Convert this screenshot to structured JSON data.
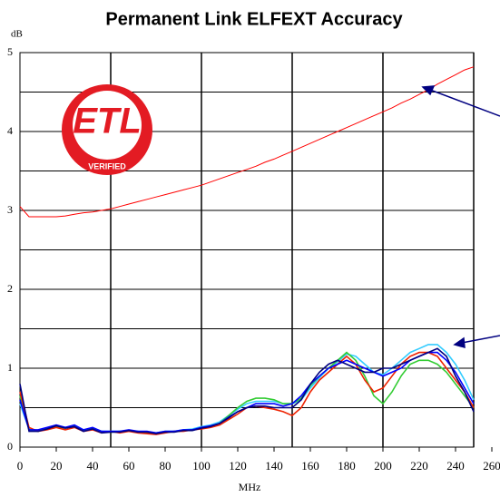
{
  "chart_data": {
    "type": "line",
    "title": "Permanent Link ELFEXT Accuracy",
    "ylabel": "dB",
    "xlabel": "MHz",
    "logo": {
      "text": "ETL",
      "subtext": "VERIFIED"
    },
    "xlim": [
      0,
      250
    ],
    "ylim": [
      0,
      5
    ],
    "xticks": [
      0,
      20,
      40,
      60,
      80,
      100,
      120,
      140,
      160,
      180,
      200,
      220,
      240,
      260
    ],
    "xgrid": [
      50,
      100,
      150,
      200,
      250
    ],
    "yticks": [
      0,
      1,
      2,
      3,
      4,
      5
    ],
    "minor_yticks": [
      0.5,
      1.5,
      2.5,
      3.5,
      4.5
    ],
    "grid": true,
    "x": [
      0,
      5,
      10,
      15,
      20,
      25,
      30,
      35,
      40,
      45,
      50,
      55,
      60,
      65,
      70,
      75,
      80,
      85,
      90,
      95,
      100,
      105,
      110,
      115,
      120,
      125,
      130,
      135,
      140,
      145,
      150,
      155,
      160,
      165,
      170,
      175,
      180,
      185,
      190,
      195,
      200,
      205,
      210,
      215,
      220,
      225,
      230,
      235,
      240,
      245,
      250
    ],
    "series": [
      {
        "color": "#ff0000",
        "values": [
          3.05,
          2.92,
          2.92,
          2.92,
          2.92,
          2.93,
          2.95,
          2.97,
          2.98,
          3.0,
          3.02,
          3.05,
          3.08,
          3.11,
          3.14,
          3.17,
          3.2,
          3.23,
          3.26,
          3.29,
          3.32,
          3.36,
          3.4,
          3.44,
          3.48,
          3.52,
          3.56,
          3.61,
          3.65,
          3.7,
          3.75,
          3.8,
          3.85,
          3.9,
          3.95,
          4.0,
          4.05,
          4.1,
          4.15,
          4.2,
          4.25,
          4.3,
          4.36,
          4.41,
          4.47,
          4.53,
          4.6,
          4.66,
          4.72,
          4.78,
          4.82
        ]
      },
      {
        "color": "#33ccff",
        "values": [
          0.55,
          0.23,
          0.21,
          0.24,
          0.27,
          0.25,
          0.27,
          0.22,
          0.24,
          0.2,
          0.2,
          0.2,
          0.21,
          0.19,
          0.19,
          0.18,
          0.2,
          0.2,
          0.22,
          0.23,
          0.26,
          0.28,
          0.32,
          0.4,
          0.48,
          0.55,
          0.58,
          0.58,
          0.58,
          0.55,
          0.55,
          0.6,
          0.75,
          0.88,
          1.0,
          1.08,
          1.18,
          1.15,
          1.05,
          0.95,
          0.92,
          1.0,
          1.1,
          1.2,
          1.25,
          1.3,
          1.3,
          1.2,
          1.05,
          0.85,
          0.6
        ]
      },
      {
        "color": "#33cc33",
        "values": [
          0.65,
          0.22,
          0.2,
          0.24,
          0.26,
          0.24,
          0.27,
          0.21,
          0.24,
          0.2,
          0.19,
          0.2,
          0.21,
          0.2,
          0.18,
          0.17,
          0.19,
          0.2,
          0.21,
          0.22,
          0.24,
          0.26,
          0.3,
          0.4,
          0.5,
          0.58,
          0.62,
          0.62,
          0.6,
          0.55,
          0.55,
          0.62,
          0.78,
          0.9,
          1.0,
          1.1,
          1.2,
          1.1,
          0.9,
          0.65,
          0.55,
          0.7,
          0.9,
          1.05,
          1.1,
          1.1,
          1.05,
          0.95,
          0.8,
          0.65,
          0.5
        ]
      },
      {
        "color": "#ee2200",
        "values": [
          0.7,
          0.25,
          0.2,
          0.22,
          0.25,
          0.22,
          0.25,
          0.2,
          0.22,
          0.18,
          0.2,
          0.18,
          0.2,
          0.18,
          0.17,
          0.16,
          0.18,
          0.2,
          0.2,
          0.22,
          0.23,
          0.25,
          0.28,
          0.35,
          0.42,
          0.5,
          0.52,
          0.5,
          0.48,
          0.45,
          0.4,
          0.5,
          0.7,
          0.85,
          0.95,
          1.05,
          1.15,
          1.05,
          0.85,
          0.7,
          0.75,
          0.9,
          1.05,
          1.15,
          1.2,
          1.2,
          1.15,
          1.0,
          0.85,
          0.7,
          0.5
        ]
      },
      {
        "color": "#0000ff",
        "values": [
          0.6,
          0.22,
          0.22,
          0.25,
          0.28,
          0.25,
          0.28,
          0.22,
          0.25,
          0.2,
          0.2,
          0.2,
          0.22,
          0.2,
          0.2,
          0.18,
          0.2,
          0.2,
          0.22,
          0.22,
          0.25,
          0.27,
          0.3,
          0.38,
          0.45,
          0.5,
          0.55,
          0.55,
          0.55,
          0.52,
          0.55,
          0.65,
          0.8,
          0.9,
          1.0,
          1.05,
          1.1,
          1.05,
          1.0,
          0.95,
          0.9,
          0.95,
          1.0,
          1.1,
          1.15,
          1.2,
          1.2,
          1.1,
          0.95,
          0.75,
          0.55
        ]
      },
      {
        "color": "#000080",
        "values": [
          0.8,
          0.2,
          0.2,
          0.23,
          0.27,
          0.24,
          0.26,
          0.2,
          0.23,
          0.18,
          0.19,
          0.19,
          0.21,
          0.19,
          0.19,
          0.17,
          0.19,
          0.19,
          0.21,
          0.21,
          0.24,
          0.26,
          0.3,
          0.37,
          0.45,
          0.5,
          0.52,
          0.52,
          0.5,
          0.5,
          0.5,
          0.6,
          0.8,
          0.95,
          1.05,
          1.1,
          1.05,
          1.0,
          0.95,
          0.95,
          1.0,
          1.0,
          1.05,
          1.1,
          1.15,
          1.2,
          1.25,
          1.15,
          0.9,
          0.7,
          0.45
        ]
      }
    ]
  }
}
